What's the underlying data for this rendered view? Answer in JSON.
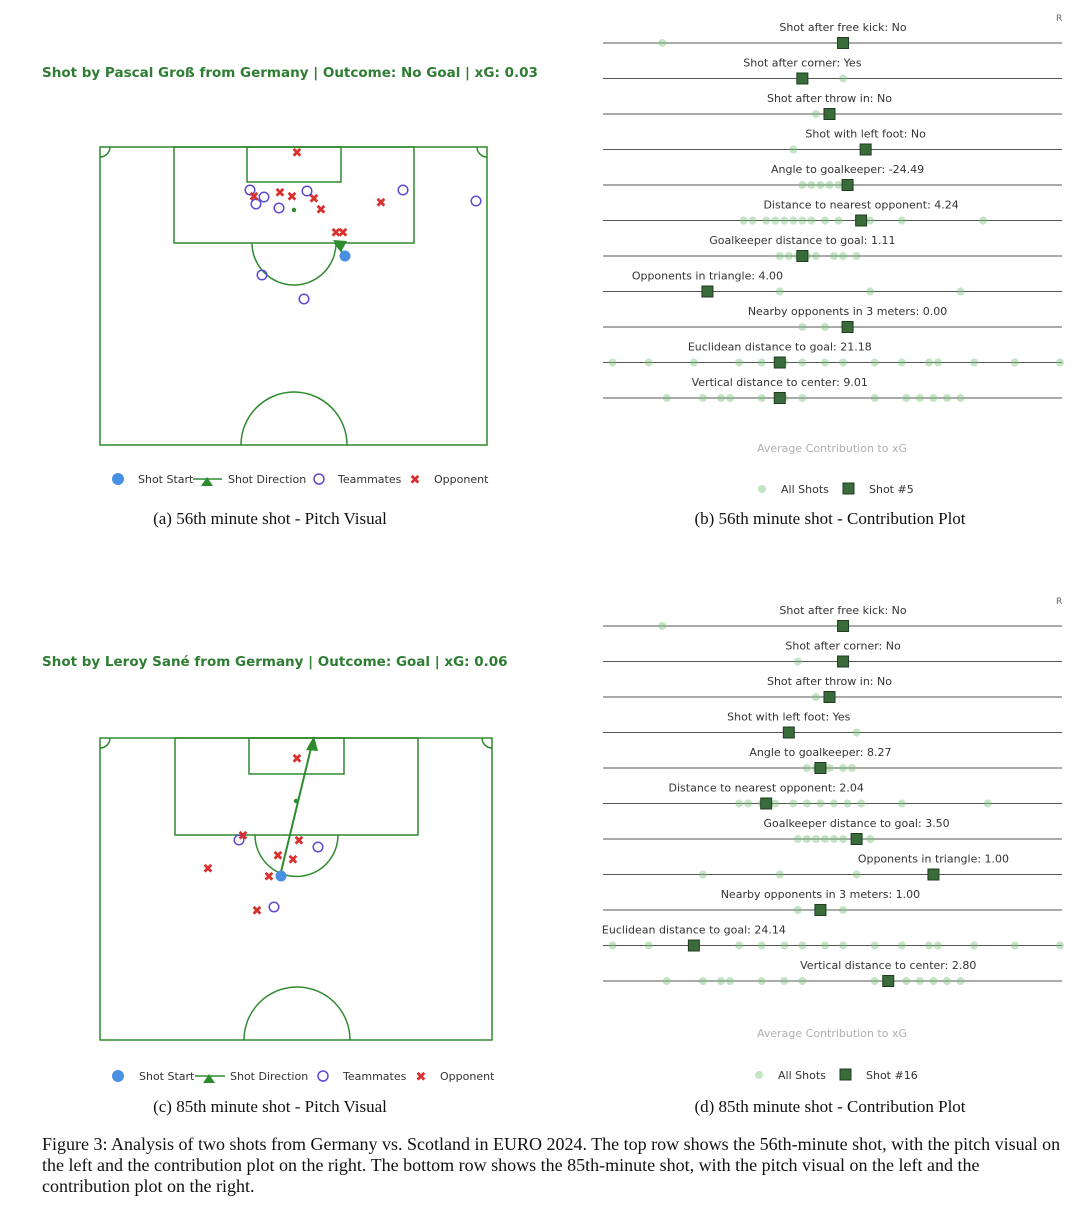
{
  "figure_caption": "Figure 3: Analysis of two shots from Germany vs. Scotland in EURO 2024. The top row shows the 56th-minute shot, with the pitch visual on the left and the contribution plot on the right. The bottom row shows the 85th-minute shot, with the pitch visual on the left and the contribution plot on the right.",
  "legend_pitch": {
    "shot_start": "Shot Start",
    "shot_direction": "Shot Direction",
    "teammates": "Teammates",
    "opponent": "Opponent"
  },
  "legend_contrib_all": "All Shots",
  "colors": {
    "pitch": "#2e8b2e",
    "title": "#2e7d32",
    "shot_start": "#4a90e2",
    "teammate": "#5b4ad6",
    "opponent": "#d93030",
    "dot": "#8cc98c",
    "square": "#3a6b3a"
  },
  "panels": [
    {
      "pitch_title": "Shot by Pascal Groß from Germany | Outcome: No Goal | xG: 0.03",
      "pitch_caption": "(a) 56th minute shot - Pitch Visual",
      "contrib_caption": "(b) 56th minute shot - Contribution Plot",
      "axis_title": "Average Contribution to xG",
      "shot_legend": "Shot #5",
      "corner_mark": "R"
    },
    {
      "pitch_title": "Shot by Leroy Sané from Germany | Outcome: Goal | xG: 0.06",
      "pitch_caption": "(c) 85th minute shot - Pitch Visual",
      "contrib_caption": "(d) 85th minute shot - Contribution Plot",
      "axis_title": "Average Contribution to xG",
      "shot_legend": "Shot #16",
      "corner_mark": "R"
    }
  ],
  "chart_data": [
    {
      "type": "scatter",
      "title": "",
      "xlabel": "Average Contribution to xG",
      "ylabel": "",
      "xlim": [
        0,
        1
      ],
      "series": [
        {
          "name": "All Shots"
        },
        {
          "name": "Shot #5"
        }
      ],
      "rows": [
        {
          "label": "Shot after free kick: No",
          "all": [
            0.12,
            0.52
          ],
          "shot": 0.52
        },
        {
          "label": "Shot after corner: Yes",
          "all": [
            0.52
          ],
          "shot": 0.43
        },
        {
          "label": "Shot after throw in: No",
          "all": [
            0.46
          ],
          "shot": 0.49
        },
        {
          "label": "Shot with left foot: No",
          "all": [
            0.41
          ],
          "shot": 0.57
        },
        {
          "label": "Angle to goalkeeper: -24.49",
          "all": [
            0.43,
            0.45,
            0.47,
            0.49,
            0.51
          ],
          "shot": 0.53
        },
        {
          "label": "Distance to nearest opponent: 4.24",
          "all": [
            0.3,
            0.32,
            0.35,
            0.37,
            0.39,
            0.41,
            0.43,
            0.45,
            0.48,
            0.51,
            0.58,
            0.65,
            0.83
          ],
          "shot": 0.56
        },
        {
          "label": "Goalkeeper distance to goal: 1.11",
          "all": [
            0.38,
            0.4,
            0.42,
            0.44,
            0.46,
            0.5,
            0.52,
            0.55
          ],
          "shot": 0.43
        },
        {
          "label": "Opponents in triangle: 4.00",
          "all": [
            0.38,
            0.58,
            0.78
          ],
          "shot": 0.22
        },
        {
          "label": "Nearby opponents in 3 meters: 0.00",
          "all": [
            0.43,
            0.48
          ],
          "shot": 0.53
        },
        {
          "label": "Euclidean distance to goal: 21.18",
          "all": [
            0.01,
            0.09,
            0.19,
            0.29,
            0.34,
            0.39,
            0.43,
            0.48,
            0.52,
            0.59,
            0.65,
            0.71,
            0.73,
            0.81,
            0.9,
            1.0
          ],
          "shot": 0.38
        },
        {
          "label": "Vertical distance to center: 9.01",
          "all": [
            0.13,
            0.21,
            0.25,
            0.27,
            0.34,
            0.39,
            0.43,
            0.59,
            0.66,
            0.69,
            0.72,
            0.75,
            0.78
          ],
          "shot": 0.38
        }
      ]
    },
    {
      "type": "scatter",
      "title": "",
      "xlabel": "Average Contribution to xG",
      "ylabel": "",
      "xlim": [
        0,
        1
      ],
      "series": [
        {
          "name": "All Shots"
        },
        {
          "name": "Shot #16"
        }
      ],
      "rows": [
        {
          "label": "Shot after free kick: No",
          "all": [
            0.12,
            0.52
          ],
          "shot": 0.52
        },
        {
          "label": "Shot after corner: No",
          "all": [
            0.42
          ],
          "shot": 0.52
        },
        {
          "label": "Shot after throw in: No",
          "all": [
            0.46
          ],
          "shot": 0.49
        },
        {
          "label": "Shot with left foot: Yes",
          "all": [
            0.55
          ],
          "shot": 0.4
        },
        {
          "label": "Angle to goalkeeper: 8.27",
          "all": [
            0.44,
            0.46,
            0.49,
            0.52,
            0.54
          ],
          "shot": 0.47
        },
        {
          "label": "Distance to nearest opponent: 2.04",
          "all": [
            0.29,
            0.31,
            0.34,
            0.37,
            0.41,
            0.44,
            0.47,
            0.5,
            0.53,
            0.56,
            0.65,
            0.84
          ],
          "shot": 0.35
        },
        {
          "label": "Goalkeeper distance to goal: 3.50",
          "all": [
            0.42,
            0.44,
            0.46,
            0.48,
            0.5,
            0.52,
            0.55,
            0.58
          ],
          "shot": 0.55
        },
        {
          "label": "Opponents in triangle: 1.00",
          "all": [
            0.21,
            0.38,
            0.55
          ],
          "shot": 0.72
        },
        {
          "label": "Nearby opponents in 3 meters: 1.00",
          "all": [
            0.42,
            0.52
          ],
          "shot": 0.47
        },
        {
          "label": "Euclidean distance to goal: 24.14",
          "all": [
            0.01,
            0.09,
            0.19,
            0.29,
            0.34,
            0.39,
            0.43,
            0.48,
            0.52,
            0.59,
            0.65,
            0.71,
            0.73,
            0.81,
            0.9,
            1.0
          ],
          "shot": 0.19
        },
        {
          "label": "Vertical distance to center: 2.80",
          "all": [
            0.13,
            0.21,
            0.25,
            0.27,
            0.34,
            0.39,
            0.43,
            0.59,
            0.66,
            0.69,
            0.72,
            0.75,
            0.78
          ],
          "shot": 0.62
        }
      ]
    }
  ]
}
